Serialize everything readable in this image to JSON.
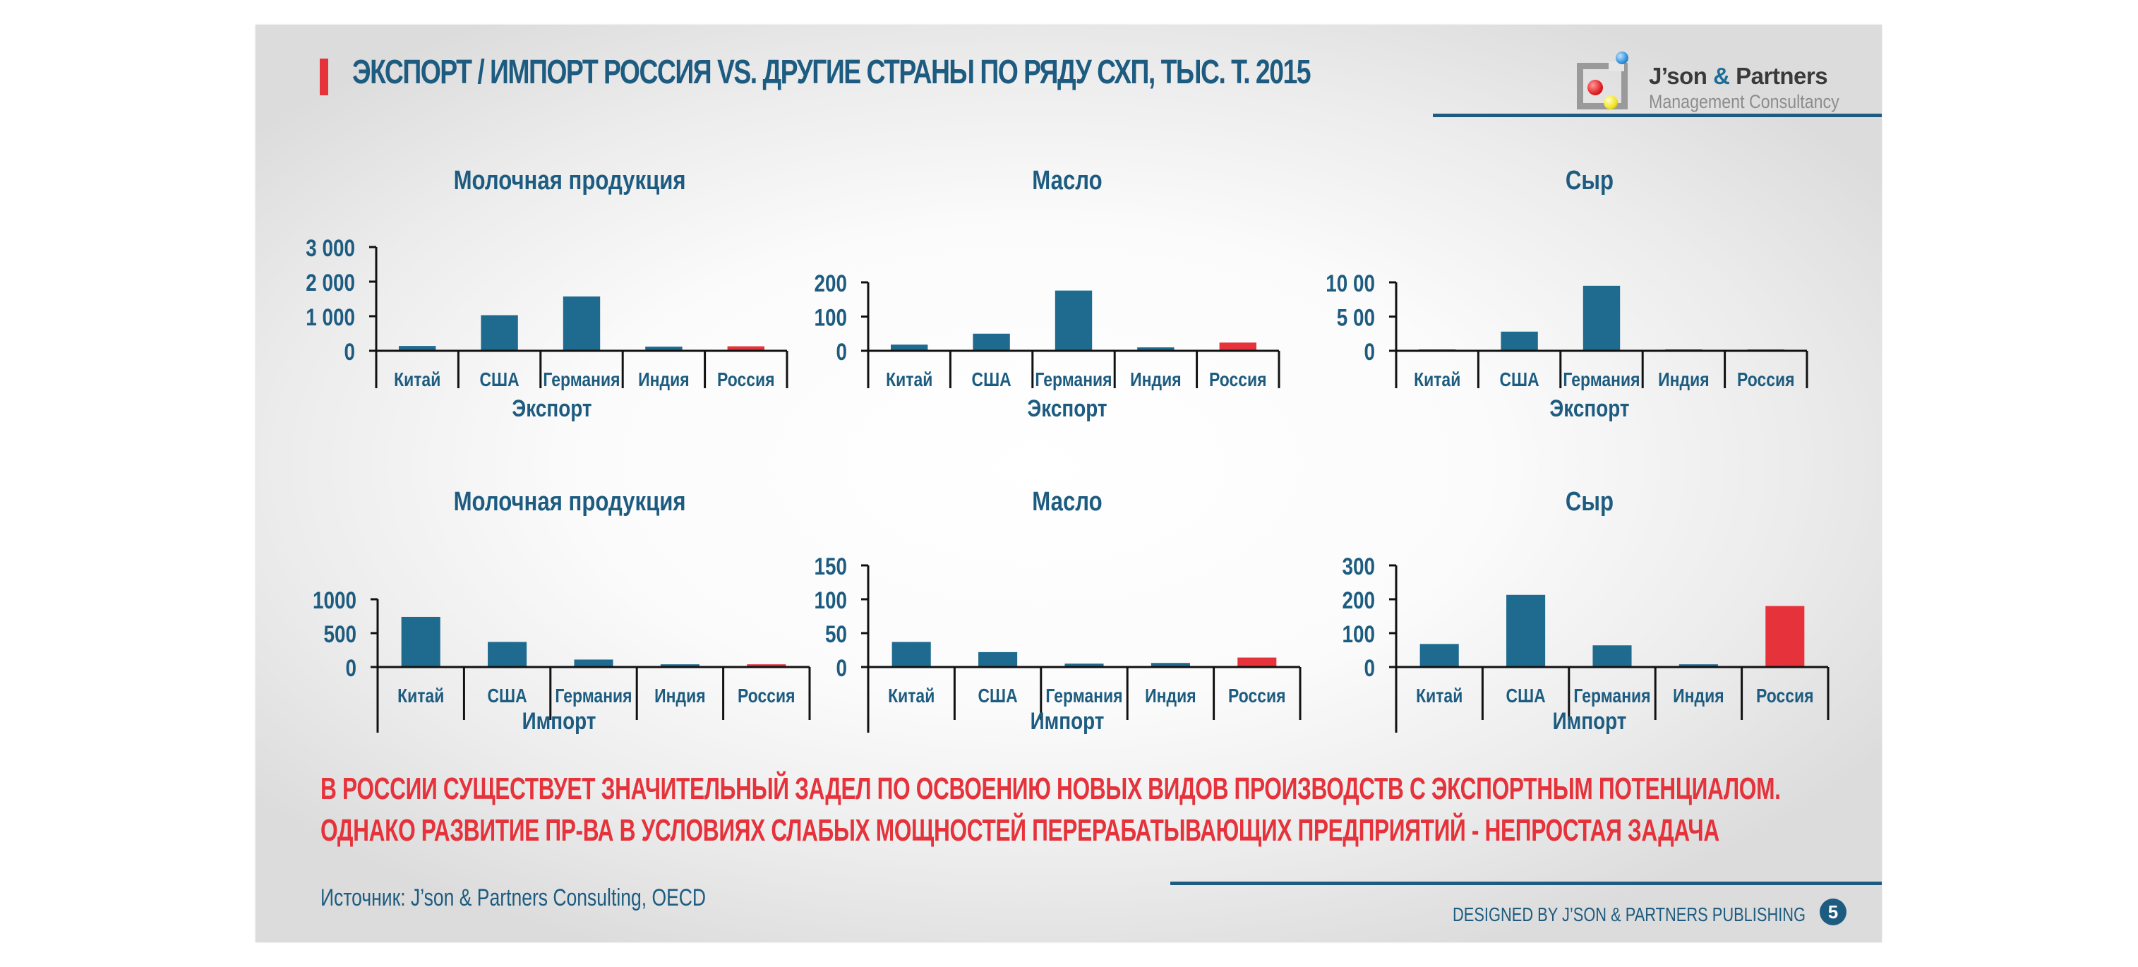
{
  "slide": {
    "title": "ЭКСПОРТ / ИМПОРТ РОССИЯ VS. ДРУГИЕ СТРАНЫ ПО РЯДУ СХП, ТЫС. Т. 2015",
    "logo": {
      "name_part1": "J’son ",
      "name_amp": "&",
      "name_part2": " Partners",
      "subtitle": "Management Consultancy"
    },
    "conclusion_line1": "В РОССИИ СУЩЕСТВУЕТ ЗНАЧИТЕЛЬНЫЙ ЗАДЕЛ ПО ОСВОЕНИЮ НОВЫХ ВИДОВ ПРОИЗВОДСТВ С ЭКСПОРТНЫМ ПОТЕНЦИАЛОМ.",
    "conclusion_line2": "ОДНАКО РАЗВИТИЕ ПР-ВА В УСЛОВИЯХ СЛАБЫХ МОЩНОСТЕЙ ПЕРЕРАБАТЫВАЮЩИХ ПРЕДПРИЯТИЙ  - НЕПРОСТАЯ ЗАДАЧА",
    "source": "Источник: J’son & Partners Consulting, OECD",
    "designed_by": "DESIGNED BY J’SON & PARTNERS PUBLISHING",
    "page_number": "5"
  },
  "colors": {
    "bar": "#1f6a8f",
    "highlight": "#e5323b",
    "text": "#1d5c80",
    "axis": "#111111"
  },
  "chart_data": [
    {
      "type": "bar",
      "title": "Молочная продукция",
      "xlabel": "Экспорт",
      "ylabel": "",
      "categories": [
        "Китай",
        "США",
        "Германия",
        "Индия",
        "Россия"
      ],
      "values": [
        140,
        1030,
        1570,
        120,
        130
      ],
      "highlight_index": 4,
      "yticks": [
        0,
        1000,
        2000,
        3000
      ],
      "ytick_labels": [
        "0",
        "1 000",
        "2 000",
        "3 000"
      ],
      "ylim": [
        0,
        3000
      ],
      "grid": false,
      "legend": null
    },
    {
      "type": "bar",
      "title": "Масло",
      "xlabel": "Экспорт",
      "ylabel": "",
      "categories": [
        "Китай",
        "США",
        "Германия",
        "Индия",
        "Россия"
      ],
      "values": [
        18,
        50,
        176,
        10,
        24
      ],
      "highlight_index": 4,
      "yticks": [
        0,
        100,
        200
      ],
      "ytick_labels": [
        "0",
        "100",
        "200"
      ],
      "ylim": [
        0,
        200
      ],
      "grid": false,
      "legend": null
    },
    {
      "type": "bar",
      "title": "Сыр",
      "xlabel": "Экспорт",
      "ylabel": "",
      "categories": [
        "Китай",
        "США",
        "Германия",
        "Индия",
        "Россия"
      ],
      "values": [
        10,
        280,
        950,
        5,
        8
      ],
      "highlight_index": 4,
      "yticks": [
        0,
        500,
        1000
      ],
      "ytick_labels": [
        "0",
        "5 00",
        "10 00"
      ],
      "ylim": [
        0,
        1000
      ],
      "grid": false,
      "legend": null
    },
    {
      "type": "bar",
      "title": "Молочная продукция",
      "xlabel": "Импорт",
      "ylabel": "",
      "categories": [
        "Китай",
        "США",
        "Германия",
        "Индия",
        "Россия"
      ],
      "values": [
        740,
        370,
        110,
        40,
        40
      ],
      "highlight_index": 4,
      "yticks": [
        0,
        500,
        1000
      ],
      "ytick_labels": [
        "0",
        "500",
        "1000"
      ],
      "ylim": [
        0,
        1000
      ],
      "grid": false,
      "legend": null
    },
    {
      "type": "bar",
      "title": "Масло",
      "xlabel": "Импорт",
      "ylabel": "",
      "categories": [
        "Китай",
        "США",
        "Германия",
        "Индия",
        "Россия"
      ],
      "values": [
        37,
        22,
        5,
        6,
        14
      ],
      "highlight_index": 4,
      "yticks": [
        0,
        50,
        100,
        150
      ],
      "ytick_labels": [
        "0",
        "50",
        "100",
        "150"
      ],
      "ylim": [
        0,
        150
      ],
      "grid": false,
      "legend": null
    },
    {
      "type": "bar",
      "title": "Сыр",
      "xlabel": "Импорт",
      "ylabel": "",
      "categories": [
        "Китай",
        "США",
        "Германия",
        "Индия",
        "Россия"
      ],
      "values": [
        68,
        213,
        64,
        8,
        180
      ],
      "highlight_index": 4,
      "yticks": [
        0,
        100,
        200,
        300
      ],
      "ytick_labels": [
        "0",
        "100",
        "200",
        "300"
      ],
      "ylim": [
        0,
        300
      ],
      "grid": false,
      "legend": null
    }
  ]
}
